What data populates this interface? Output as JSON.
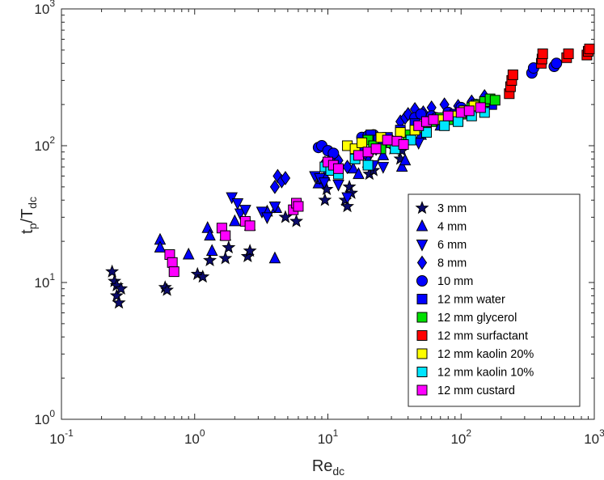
{
  "chart_data": {
    "type": "scatter",
    "xscale": "log",
    "yscale": "log",
    "xlim": [
      0.1,
      1000
    ],
    "ylim": [
      1,
      1000
    ],
    "xlabel": {
      "base": "Re",
      "sub": "dc"
    },
    "ylabel": {
      "base": "t",
      "sub1": "p",
      "mid": "/T",
      "sub2": "dc"
    },
    "xticks": [
      {
        "value": 0.1,
        "base": "10",
        "exp": "-1"
      },
      {
        "value": 1,
        "base": "10",
        "exp": "0"
      },
      {
        "value": 10,
        "base": "10",
        "exp": "1"
      },
      {
        "value": 100,
        "base": "10",
        "exp": "2"
      },
      {
        "value": 1000,
        "base": "10",
        "exp": "3"
      }
    ],
    "yticks": [
      {
        "value": 1,
        "base": "10",
        "exp": "0"
      },
      {
        "value": 10,
        "base": "10",
        "exp": "1"
      },
      {
        "value": 100,
        "base": "10",
        "exp": "2"
      },
      {
        "value": 1000,
        "base": "10",
        "exp": "3"
      }
    ],
    "legend_position": "right",
    "series": [
      {
        "name": "3 mm",
        "marker": "star",
        "color": "#0b0b6e",
        "points": [
          [
            0.24,
            12.0
          ],
          [
            0.25,
            10.2
          ],
          [
            0.26,
            9.5
          ],
          [
            0.26,
            8.0
          ],
          [
            0.27,
            7.1
          ],
          [
            0.28,
            9.0
          ],
          [
            0.6,
            9.2
          ],
          [
            0.62,
            8.8
          ],
          [
            1.05,
            11.5
          ],
          [
            1.15,
            11.0
          ],
          [
            1.3,
            14.5
          ],
          [
            1.7,
            15.0
          ],
          [
            1.8,
            18.0
          ],
          [
            2.5,
            15.5
          ],
          [
            2.6,
            17.0
          ],
          [
            4.8,
            30.0
          ],
          [
            5.8,
            28.0
          ],
          [
            9.5,
            40.0
          ],
          [
            9.8,
            48.0
          ],
          [
            13.5,
            40.0
          ],
          [
            14.0,
            36.0
          ],
          [
            14.5,
            50.0
          ],
          [
            15.0,
            45.0
          ],
          [
            20.5,
            62.0
          ],
          [
            22.0,
            66.0
          ],
          [
            31.0,
            95.0
          ],
          [
            35.0,
            80.0
          ],
          [
            36.0,
            92.0
          ]
        ]
      },
      {
        "name": "4 mm",
        "marker": "triangle-up",
        "color": "#0000ff",
        "points": [
          [
            0.55,
            20.5
          ],
          [
            0.55,
            18.0
          ],
          [
            0.9,
            16.0
          ],
          [
            1.25,
            25.0
          ],
          [
            1.3,
            22.0
          ],
          [
            1.35,
            17.0
          ],
          [
            1.7,
            22.0
          ],
          [
            2.0,
            28.0
          ],
          [
            2.6,
            26.0
          ],
          [
            3.5,
            33.0
          ],
          [
            4.1,
            35.0
          ],
          [
            4.0,
            15.0
          ],
          [
            8.5,
            53.0
          ],
          [
            9.0,
            57.0
          ],
          [
            9.5,
            60.0
          ],
          [
            15.5,
            68.0
          ],
          [
            17.0,
            62.0
          ],
          [
            20.0,
            75.0
          ],
          [
            26.0,
            85.0
          ],
          [
            36.0,
            70.0
          ],
          [
            38.0,
            78.0
          ],
          [
            45.0,
            130.0
          ],
          [
            50.0,
            120.0
          ],
          [
            60.0,
            150.0
          ],
          [
            70.0,
            140.0
          ],
          [
            90.0,
            160.0
          ]
        ]
      },
      {
        "name": "6 mm",
        "marker": "triangle-down",
        "color": "#0000ff",
        "points": [
          [
            1.9,
            42.0
          ],
          [
            2.1,
            38.0
          ],
          [
            2.2,
            32.0
          ],
          [
            2.4,
            34.0
          ],
          [
            3.2,
            33.0
          ],
          [
            3.5,
            30.0
          ],
          [
            4.0,
            36.0
          ],
          [
            8.0,
            60.0
          ],
          [
            8.7,
            58.0
          ],
          [
            9.4,
            54.0
          ],
          [
            11.0,
            68.0
          ],
          [
            12.0,
            52.0
          ],
          [
            14.0,
            42.0
          ],
          [
            18.0,
            95.0
          ],
          [
            20.0,
            80.0
          ],
          [
            22.0,
            72.0
          ],
          [
            26.0,
            70.0
          ],
          [
            32.0,
            100.0
          ],
          [
            40.0,
            115.0
          ],
          [
            48.0,
            105.0
          ],
          [
            55.0,
            150.0
          ],
          [
            65.0,
            160.0
          ]
        ]
      },
      {
        "name": "8 mm",
        "marker": "diamond",
        "color": "#0000ff",
        "points": [
          [
            4.0,
            50.0
          ],
          [
            4.2,
            60.0
          ],
          [
            4.5,
            55.0
          ],
          [
            4.8,
            58.0
          ],
          [
            9.5,
            75.0
          ],
          [
            10.5,
            80.0
          ],
          [
            12.0,
            78.0
          ],
          [
            14.0,
            70.0
          ],
          [
            19.0,
            88.0
          ],
          [
            21.0,
            90.0
          ],
          [
            23.0,
            95.0
          ],
          [
            30.0,
            110.0
          ],
          [
            35.0,
            150.0
          ],
          [
            38.0,
            160.0
          ],
          [
            40.0,
            170.0
          ],
          [
            45.0,
            185.0
          ],
          [
            52.0,
            175.0
          ],
          [
            60.0,
            190.0
          ],
          [
            75.0,
            200.0
          ],
          [
            95.0,
            195.0
          ],
          [
            120.0,
            210.0
          ],
          [
            150.0,
            230.0
          ]
        ]
      },
      {
        "name": "10 mm",
        "marker": "circle",
        "color": "#0000ff",
        "points": [
          [
            8.5,
            97.0
          ],
          [
            9.0,
            100.0
          ],
          [
            10.0,
            92.0
          ],
          [
            11.0,
            88.0
          ],
          [
            18.0,
            115.0
          ],
          [
            20.0,
            118.0
          ],
          [
            22.0,
            120.0
          ],
          [
            25.0,
            110.0
          ],
          [
            45.0,
            160.0
          ],
          [
            50.0,
            170.0
          ],
          [
            60.0,
            165.0
          ],
          [
            65.0,
            160.0
          ],
          [
            80.0,
            175.0
          ],
          [
            100.0,
            190.0
          ],
          [
            120.0,
            185.0
          ],
          [
            130.0,
            200.0
          ],
          [
            340.0,
            340.0
          ],
          [
            350.0,
            370.0
          ],
          [
            500.0,
            380.0
          ],
          [
            520.0,
            400.0
          ]
        ]
      },
      {
        "name": "12 mm water",
        "marker": "square",
        "color": "#0000ff",
        "points": [
          [
            21.0,
            120.0
          ],
          [
            24.0,
            110.0
          ],
          [
            26.0,
            108.0
          ],
          [
            28.0,
            115.0
          ],
          [
            35.0,
            130.0
          ],
          [
            45.0,
            145.0
          ],
          [
            55.0,
            150.0
          ],
          [
            70.0,
            160.0
          ],
          [
            90.0,
            170.0
          ],
          [
            110.0,
            180.0
          ],
          [
            130.0,
            200.0
          ],
          [
            150.0,
            210.0
          ],
          [
            170.0,
            200.0
          ]
        ]
      },
      {
        "name": "12 mm glycerol",
        "marker": "square",
        "color": "#00e000",
        "points": [
          [
            20.0,
            110.0
          ],
          [
            22.0,
            100.0
          ],
          [
            25.0,
            95.0
          ],
          [
            30.0,
            105.0
          ],
          [
            40.0,
            120.0
          ],
          [
            50.0,
            135.0
          ],
          [
            55.0,
            140.0
          ],
          [
            60.0,
            150.0
          ],
          [
            70.0,
            160.0
          ],
          [
            80.0,
            155.0
          ],
          [
            90.0,
            165.0
          ],
          [
            100.0,
            170.0
          ],
          [
            110.0,
            180.0
          ],
          [
            120.0,
            190.0
          ],
          [
            135.0,
            200.0
          ],
          [
            150.0,
            210.0
          ],
          [
            165.0,
            220.0
          ],
          [
            180.0,
            215.0
          ]
        ]
      },
      {
        "name": "12 mm surfactant",
        "marker": "square",
        "color": "#ff0000",
        "points": [
          [
            230.0,
            240.0
          ],
          [
            235.0,
            270.0
          ],
          [
            240.0,
            300.0
          ],
          [
            245.0,
            330.0
          ],
          [
            400.0,
            400.0
          ],
          [
            405.0,
            430.0
          ],
          [
            410.0,
            470.0
          ],
          [
            620.0,
            440.0
          ],
          [
            640.0,
            470.0
          ],
          [
            880.0,
            460.0
          ],
          [
            900.0,
            490.0
          ],
          [
            920.0,
            510.0
          ]
        ]
      },
      {
        "name": "12 mm kaolin 20%",
        "marker": "square",
        "color": "#ffff00",
        "points": [
          [
            14.0,
            100.0
          ],
          [
            16.0,
            95.0
          ],
          [
            18.0,
            105.0
          ],
          [
            25.0,
            115.0
          ],
          [
            35.0,
            125.0
          ],
          [
            45.0,
            130.0
          ],
          [
            70.0,
            155.0
          ],
          [
            85.0,
            165.0
          ],
          [
            105.0,
            180.0
          ],
          [
            125.0,
            195.0
          ]
        ]
      },
      {
        "name": "12 mm kaolin 10%",
        "marker": "square",
        "color": "#00e5ff",
        "points": [
          [
            9.5,
            70.0
          ],
          [
            10.5,
            66.0
          ],
          [
            12.0,
            62.0
          ],
          [
            16.0,
            80.0
          ],
          [
            20.0,
            72.0
          ],
          [
            32.0,
            95.0
          ],
          [
            42.0,
            110.0
          ],
          [
            55.0,
            125.0
          ],
          [
            75.0,
            140.0
          ],
          [
            95.0,
            150.0
          ],
          [
            120.0,
            165.0
          ],
          [
            150.0,
            175.0
          ]
        ]
      },
      {
        "name": "12 mm custard",
        "marker": "square",
        "color": "#ff00ff",
        "points": [
          [
            0.65,
            16.0
          ],
          [
            0.68,
            14.0
          ],
          [
            0.7,
            12.0
          ],
          [
            1.6,
            25.0
          ],
          [
            1.7,
            22.0
          ],
          [
            2.4,
            28.0
          ],
          [
            2.6,
            26.0
          ],
          [
            5.5,
            34.0
          ],
          [
            5.8,
            38.0
          ],
          [
            6.0,
            36.0
          ],
          [
            10.0,
            76.0
          ],
          [
            11.0,
            72.0
          ],
          [
            12.0,
            68.0
          ],
          [
            17.0,
            85.0
          ],
          [
            20.0,
            90.0
          ],
          [
            23.0,
            95.0
          ],
          [
            28.0,
            110.0
          ],
          [
            33.0,
            108.0
          ],
          [
            37.0,
            102.0
          ],
          [
            48.0,
            140.0
          ],
          [
            55.0,
            150.0
          ],
          [
            62.0,
            155.0
          ],
          [
            80.0,
            165.0
          ],
          [
            100.0,
            175.0
          ],
          [
            115.0,
            180.0
          ],
          [
            140.0,
            190.0
          ]
        ]
      }
    ]
  }
}
